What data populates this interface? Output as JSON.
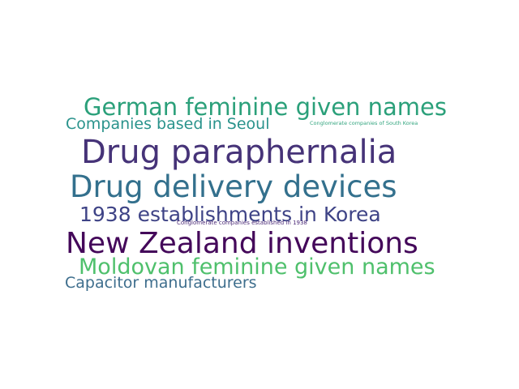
{
  "words": [
    {
      "text": "German feminine given names",
      "color": "#2ba07a"
    },
    {
      "text": "Companies based in Seoul",
      "color": "#2a938c"
    },
    {
      "text": "Conglomerate companies of South Korea",
      "color": "#33a57f"
    },
    {
      "text": "Drug paraphernalia",
      "color": "#463378"
    },
    {
      "text": "Drug delivery devices",
      "color": "#33708d"
    },
    {
      "text": "1938 establishments in Korea",
      "color": "#3e4386"
    },
    {
      "text": "Conglomerate companies established in 1938",
      "color": "#4b2a77"
    },
    {
      "text": "New Zealand inventions",
      "color": "#44085a"
    },
    {
      "text": "Moldovan feminine given names",
      "color": "#4fc06c"
    },
    {
      "text": "Capacitor manufacturers",
      "color": "#3e6e8d"
    }
  ]
}
